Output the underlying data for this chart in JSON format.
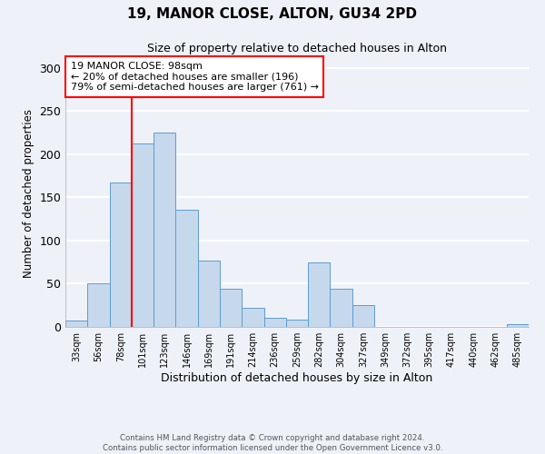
{
  "title": "19, MANOR CLOSE, ALTON, GU34 2PD",
  "subtitle": "Size of property relative to detached houses in Alton",
  "xlabel": "Distribution of detached houses by size in Alton",
  "ylabel": "Number of detached properties",
  "footer_line1": "Contains HM Land Registry data © Crown copyright and database right 2024.",
  "footer_line2": "Contains public sector information licensed under the Open Government Licence v3.0.",
  "bin_labels": [
    "33sqm",
    "56sqm",
    "78sqm",
    "101sqm",
    "123sqm",
    "146sqm",
    "169sqm",
    "191sqm",
    "214sqm",
    "236sqm",
    "259sqm",
    "282sqm",
    "304sqm",
    "327sqm",
    "349sqm",
    "372sqm",
    "395sqm",
    "417sqm",
    "440sqm",
    "462sqm",
    "485sqm"
  ],
  "bar_values": [
    7,
    50,
    167,
    212,
    225,
    136,
    77,
    44,
    22,
    10,
    8,
    75,
    44,
    25,
    0,
    0,
    0,
    0,
    0,
    0,
    3
  ],
  "bar_color": "#c6d9ec",
  "bar_edgecolor": "#5b9bd5",
  "ylim": [
    0,
    310
  ],
  "yticks": [
    0,
    50,
    100,
    150,
    200,
    250,
    300
  ],
  "vline_bin_index": 3,
  "annotation_box_text_line1": "19 MANOR CLOSE: 98sqm",
  "annotation_box_text_line2": "← 20% of detached houses are smaller (196)",
  "annotation_box_text_line3": "79% of semi-detached houses are larger (761) →",
  "annotation_box_color": "white",
  "annotation_box_edgecolor": "red",
  "vline_color": "red",
  "background_color": "#eef2f8",
  "grid_color": "#d0d8e8"
}
